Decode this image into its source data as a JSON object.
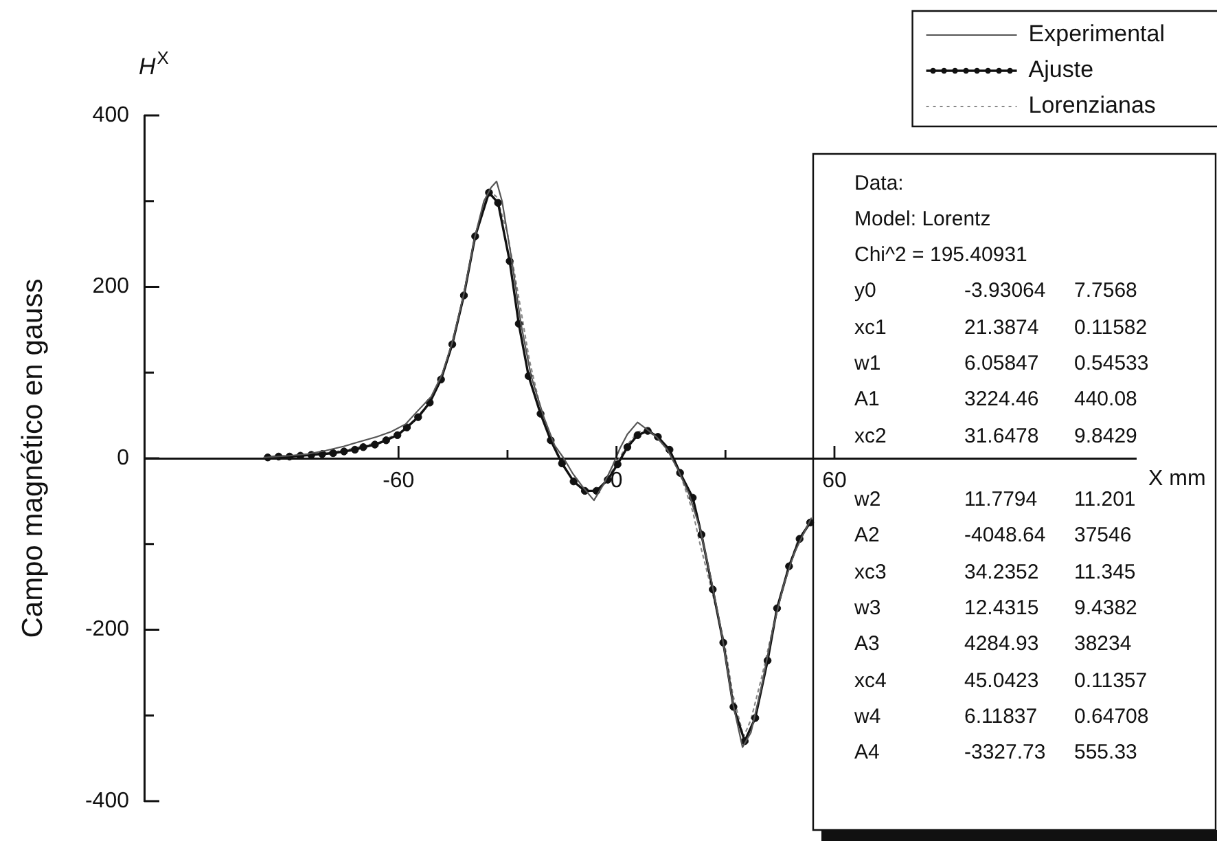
{
  "chart_data": {
    "type": "line",
    "ylabel": "Campo magnético en gauss",
    "xlabel": "X mm",
    "annotations": [
      "H$^{X}$",
      "Data:",
      "Model: Lorentz",
      "Chi^2 = 195.40931",
      "y0",
      "-3.93064",
      "7.7568",
      "xc1",
      "21.3874",
      "0.11582",
      "w1",
      "6.05847",
      "0.54533",
      "A1",
      "3224.46",
      "440.08",
      "xc2",
      "31.6478",
      "9.8429",
      "w2",
      "11.7794",
      "11.201",
      "A2",
      "-4048.64",
      "37546",
      "xc3",
      "34.2352",
      "11.345",
      "w3",
      "12.4315",
      "9.4382",
      "A3",
      "4284.93",
      "38234",
      "xc4",
      "45.0423",
      "0.11357",
      "w4",
      "6.11837",
      "0.64708",
      "A4",
      "-3327.73",
      "555.33"
    ],
    "xlim": [
      -130,
      143
    ],
    "xticks": [
      -60,
      {
        "value": -30,
        "label": null
      },
      0,
      {
        "value": 30,
        "label": null
      },
      60
    ],
    "ylim": [
      -400,
      400
    ],
    "yticks": [
      -400,
      {
        "value": -300,
        "label": null
      },
      -200,
      {
        "value": -100,
        "label": null
      },
      0,
      {
        "value": 100,
        "label": null
      },
      200,
      {
        "value": 300,
        "label": null
      },
      400
    ],
    "legend": "top right",
    "series": [
      {
        "name": "Experimental",
        "color": "#555555",
        "line_style": "solid",
        "x": [
          -97,
          -90,
          -85,
          -80,
          -75,
          -71,
          -66,
          -62,
          -58,
          -55,
          -51,
          -48,
          -45,
          -42,
          -39,
          -36.5,
          -34.5,
          -33,
          -31.5,
          -29,
          -26.3,
          -23.5,
          -20,
          -17,
          -14.5,
          -12,
          -9,
          -6.2,
          -3.5,
          -1,
          1,
          3,
          5.8,
          8,
          11,
          14,
          17,
          20,
          23,
          26,
          29,
          32,
          34.7,
          37,
          40,
          43,
          46,
          49,
          51.5,
          53.6
        ],
        "values": [
          1,
          3,
          5,
          9,
          14,
          19,
          25,
          31,
          40,
          54,
          72,
          98,
          138,
          192,
          258,
          300,
          316,
          323,
          300,
          236,
          157,
          96,
          48,
          15,
          0,
          -18,
          -35,
          -49,
          -30,
          -8,
          12,
          28,
          42,
          35,
          25,
          10,
          -14,
          -42,
          -82,
          -140,
          -205,
          -285,
          -337,
          -320,
          -265,
          -200,
          -148,
          -110,
          -88,
          -70
        ]
      },
      {
        "name": "Ajuste",
        "color": "#111111",
        "marker": "circle",
        "line_style": "solid",
        "x": [
          -96,
          -93,
          -90,
          -87,
          -84,
          -81,
          -78,
          -75,
          -72,
          -69.7,
          -66.5,
          -63.4,
          -60.3,
          -57.7,
          -54.6,
          -51.4,
          -48.3,
          -45.2,
          -42,
          -38.9,
          -35.1,
          -32.6,
          -29.4,
          -26.9,
          -24.2,
          -20.9,
          -18.1,
          -15,
          -11.8,
          -8.7,
          -5.5,
          -2.4,
          0.3,
          3,
          5.8,
          8.6,
          11.4,
          14.6,
          17.5,
          21,
          23.4,
          26.5,
          29.4,
          32.2,
          35.3,
          38.2,
          41.6,
          44.2,
          47.5,
          50.4,
          53.3
        ],
        "values": [
          1,
          2,
          2,
          3,
          4,
          5,
          6,
          8,
          10,
          13,
          16,
          21,
          27,
          36,
          48,
          65,
          92,
          133,
          190,
          259,
          310,
          298,
          230,
          157,
          96,
          52,
          21,
          -6,
          -27,
          -38,
          -38,
          -25,
          -7,
          13,
          27,
          32,
          25,
          10,
          -17,
          -46,
          -89,
          -153,
          -215,
          -290,
          -330,
          -303,
          -236,
          -175,
          -126,
          -94,
          -75
        ]
      },
      {
        "name": "Lorenzianas",
        "color": "#888888",
        "line_style": "dotted",
        "x": [
          -96,
          -85,
          -75,
          -65,
          -58,
          -52,
          -47,
          -43,
          -40,
          -37,
          -35,
          -33,
          -30,
          -27,
          -24,
          -21,
          -18,
          -15,
          -12,
          -9,
          -6,
          -3,
          0,
          3,
          6,
          9,
          12,
          15,
          18,
          21,
          23,
          26,
          29.7,
          32,
          35,
          37,
          40,
          43,
          47.2,
          50,
          53
        ],
        "values": [
          2,
          4,
          9,
          19,
          34,
          62,
          108,
          172,
          235,
          290,
          312,
          305,
          262,
          190,
          115,
          60,
          22,
          -5,
          -26,
          -37,
          -40,
          -28,
          -6,
          16,
          31,
          33,
          22,
          4,
          -24,
          -62,
          -100,
          -150,
          -215,
          -275,
          -325,
          -305,
          -255,
          -199,
          -129,
          -95,
          -76
        ]
      }
    ]
  }
}
